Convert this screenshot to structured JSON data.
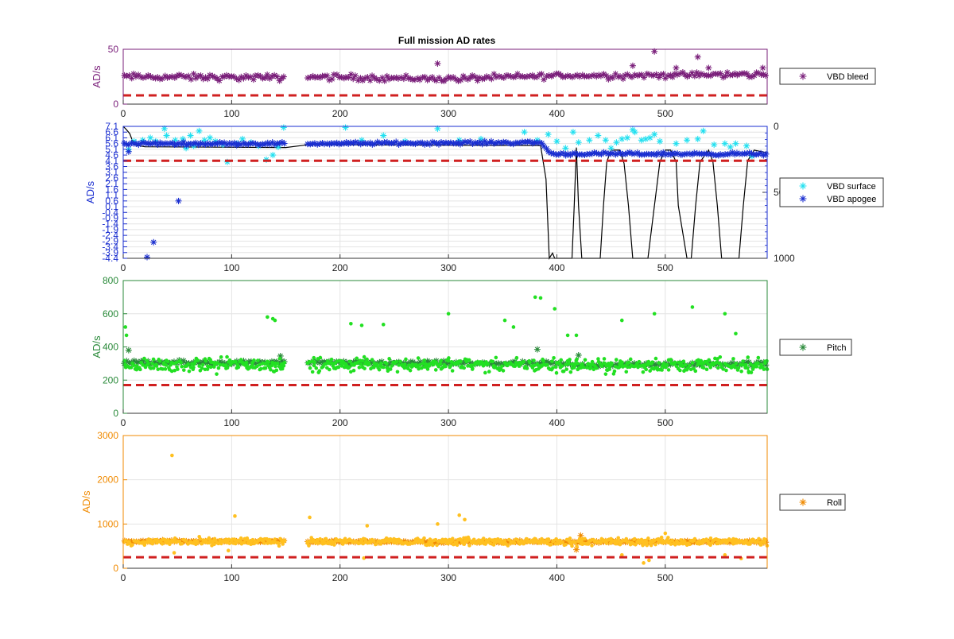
{
  "title": "Full mission AD rates",
  "colors": {
    "purple": "#7a1f7a",
    "cyan": "#22e0f0",
    "blue": "#1a2ed0",
    "darkgreen": "#2a8a3a",
    "lightgreen": "#22e022",
    "orange": "#f08a00",
    "yellow": "#ffc020",
    "threshold": "#d02020",
    "depth": "#000000"
  },
  "chart_data": [
    {
      "type": "scatter",
      "ylabel": "AD/s",
      "axis_color": "#7a1f7a",
      "xlim": [
        0,
        594
      ],
      "ylim": [
        0,
        50
      ],
      "xticks": [
        0,
        100,
        200,
        300,
        400,
        500
      ],
      "yticks": [
        0,
        50
      ],
      "grid": true,
      "threshold": 8,
      "legend": [
        "VBD bleed"
      ],
      "gaps": [
        [
          150,
          170
        ]
      ],
      "series": [
        {
          "name": "VBD bleed",
          "marker": "star",
          "color": "#7a1f7a",
          "trend": {
            "x": [
              0,
              150,
              170,
              300,
              400,
              450,
              594
            ],
            "y": [
              25,
              24,
              25,
              23,
              26,
              26,
              27
            ]
          },
          "jitter": 4,
          "outliers": [
            {
              "x": 490,
              "y": 48
            },
            {
              "x": 530,
              "y": 43
            },
            {
              "x": 510,
              "y": 33
            },
            {
              "x": 290,
              "y": 37
            },
            {
              "x": 470,
              "y": 35
            },
            {
              "x": 540,
              "y": 33
            },
            {
              "x": 590,
              "y": 33
            }
          ]
        }
      ]
    },
    {
      "type": "scatter",
      "ylabel": "AD/s",
      "axis_color": "#1a2ed0",
      "xlim": [
        0,
        594
      ],
      "ylim": [
        -4.4,
        7.1
      ],
      "yticks": [
        7.1,
        6.6,
        6.1,
        5.6,
        5.1,
        4.6,
        4.1,
        3.6,
        3.1,
        2.6,
        2.1,
        1.6,
        1.1,
        0.6,
        0.1,
        -0.4,
        -0.9,
        -1.4,
        -1.9,
        -2.4,
        -2.9,
        -3.4,
        -3.9,
        -4.4
      ],
      "ytick_labels": [
        "7.1",
        "6.6",
        "6.1",
        "5.6",
        "5.1",
        "4.6",
        "4.1",
        "3.6",
        "3.1",
        "2.6",
        "2.1",
        "1.6",
        "1.1",
        "0.6",
        "0.1",
        "-0.4",
        "-0.9",
        "-1.4",
        "-1.9",
        "-2.4",
        "-2.9",
        "-3.4",
        "-3.9",
        "-4.4"
      ],
      "y2lim": [
        0,
        1000
      ],
      "y2ticks": [
        0,
        500,
        1000
      ],
      "y2tick_labels": [
        "0",
        "500",
        "1000"
      ],
      "xticks": [
        0,
        100,
        200,
        300,
        400,
        500
      ],
      "grid": true,
      "threshold": 4.1,
      "legend": [
        "VBD surface",
        "VBD apogee"
      ],
      "gaps": [
        [
          150,
          170
        ]
      ],
      "series": [
        {
          "name": "VBD surface",
          "marker": "star",
          "color": "#22e0f0",
          "points": [
            [
              5,
              5.1
            ],
            [
              10,
              5.8
            ],
            [
              18,
              5.9
            ],
            [
              25,
              6.1
            ],
            [
              30,
              5.8
            ],
            [
              38,
              6.9
            ],
            [
              40,
              6.3
            ],
            [
              48,
              5.9
            ],
            [
              55,
              6.0
            ],
            [
              58,
              5.2
            ],
            [
              62,
              6.3
            ],
            [
              65,
              5.4
            ],
            [
              70,
              6.7
            ],
            [
              75,
              5.9
            ],
            [
              80,
              6.1
            ],
            [
              85,
              5.8
            ],
            [
              92,
              5.5
            ],
            [
              96,
              4.0
            ],
            [
              105,
              5.6
            ],
            [
              110,
              6.0
            ],
            [
              118,
              5.7
            ],
            [
              125,
              5.4
            ],
            [
              132,
              4.2
            ],
            [
              138,
              4.6
            ],
            [
              143,
              5.3
            ],
            [
              148,
              7.0
            ],
            [
              205,
              7.0
            ],
            [
              220,
              5.9
            ],
            [
              240,
              6.3
            ],
            [
              260,
              5.8
            ],
            [
              290,
              6.9
            ],
            [
              310,
              5.9
            ],
            [
              330,
              6.0
            ],
            [
              370,
              6.6
            ],
            [
              382,
              5.9
            ],
            [
              392,
              6.4
            ],
            [
              400,
              5.8
            ],
            [
              408,
              5.2
            ],
            [
              415,
              6.6
            ],
            [
              420,
              5.7
            ],
            [
              430,
              5.9
            ],
            [
              438,
              6.3
            ],
            [
              445,
              5.9
            ],
            [
              450,
              5.2
            ],
            [
              455,
              5.7
            ],
            [
              460,
              6.0
            ],
            [
              465,
              6.1
            ],
            [
              470,
              6.8
            ],
            [
              472,
              6.6
            ],
            [
              478,
              5.9
            ],
            [
              482,
              6.0
            ],
            [
              486,
              6.1
            ],
            [
              490,
              6.4
            ],
            [
              495,
              5.8
            ],
            [
              510,
              5.6
            ],
            [
              520,
              5.9
            ],
            [
              530,
              6.0
            ],
            [
              535,
              6.7
            ],
            [
              545,
              5.5
            ],
            [
              555,
              5.6
            ],
            [
              560,
              5.3
            ],
            [
              565,
              5.6
            ],
            [
              575,
              5.4
            ],
            [
              580,
              4.5
            ]
          ]
        },
        {
          "name": "VBD apogee",
          "marker": "star",
          "color": "#1a2ed0",
          "trend": {
            "x": [
              0,
              150,
              170,
              385,
              395,
              594
            ],
            "y": [
              5.6,
              5.6,
              5.6,
              5.7,
              4.7,
              4.7
            ]
          },
          "jitter": 0.18,
          "outliers": [
            {
              "x": 22,
              "y": -4.3
            },
            {
              "x": 28,
              "y": -3.0
            },
            {
              "x": 51,
              "y": 0.6
            },
            {
              "x": 5,
              "y": 4.9
            }
          ]
        }
      ],
      "depth": {
        "name": "depth",
        "x": [
          0,
          3,
          6,
          10,
          20,
          150,
          170,
          385,
          390,
          393,
          396,
          398,
          400,
          414,
          416,
          418,
          420,
          423,
          440,
          443,
          446,
          450,
          458,
          462,
          466,
          470,
          478,
          484,
          490,
          495,
          500,
          505,
          510,
          512,
          520,
          524,
          528,
          532,
          540,
          544,
          548,
          552,
          568,
          572,
          576,
          582,
          594
        ],
        "y": [
          0,
          25,
          55,
          140,
          155,
          160,
          140,
          145,
          400,
          1000,
          960,
          1000,
          1000,
          1000,
          600,
          160,
          600,
          1000,
          1000,
          600,
          270,
          180,
          180,
          280,
          600,
          1000,
          1000,
          1000,
          600,
          270,
          180,
          180,
          270,
          600,
          1000,
          1000,
          600,
          270,
          180,
          270,
          600,
          1000,
          1000,
          600,
          260,
          180,
          200
        ]
      }
    },
    {
      "type": "scatter",
      "ylabel": "AD/s",
      "axis_color": "#2a8a3a",
      "xlim": [
        0,
        594
      ],
      "ylim": [
        0,
        800
      ],
      "xticks": [
        0,
        100,
        200,
        300,
        400,
        500
      ],
      "yticks": [
        0,
        200,
        400,
        600,
        800
      ],
      "grid": true,
      "threshold": 170,
      "legend": [
        "Pitch"
      ],
      "gaps": [
        [
          150,
          170
        ]
      ],
      "series": [
        {
          "name": "Pitch",
          "marker": "star",
          "color": "#2a8a3a",
          "trend": {
            "x": [
              0,
              150,
              170,
              395,
              420,
              594
            ],
            "y": [
              305,
              305,
              305,
              300,
              290,
              300
            ]
          },
          "jitter": 18,
          "outliers": [
            {
              "x": 5,
              "y": 380
            },
            {
              "x": 382,
              "y": 385
            },
            {
              "x": 420,
              "y": 350
            },
            {
              "x": 145,
              "y": 345
            }
          ]
        },
        {
          "name": "",
          "marker": "dot",
          "color": "#22e022",
          "trend": {
            "x": [
              0,
              150,
              170,
              594
            ],
            "y": [
              290,
              290,
              290,
              290
            ]
          },
          "jitter": 60,
          "outliers": [
            {
              "x": 2,
              "y": 520
            },
            {
              "x": 3,
              "y": 470
            },
            {
              "x": 133,
              "y": 580
            },
            {
              "x": 138,
              "y": 570
            },
            {
              "x": 140,
              "y": 560
            },
            {
              "x": 210,
              "y": 540
            },
            {
              "x": 220,
              "y": 530
            },
            {
              "x": 240,
              "y": 535
            },
            {
              "x": 300,
              "y": 600
            },
            {
              "x": 380,
              "y": 700
            },
            {
              "x": 385,
              "y": 695
            },
            {
              "x": 360,
              "y": 520
            },
            {
              "x": 352,
              "y": 560
            },
            {
              "x": 398,
              "y": 630
            },
            {
              "x": 418,
              "y": 470
            },
            {
              "x": 460,
              "y": 560
            },
            {
              "x": 490,
              "y": 600
            },
            {
              "x": 525,
              "y": 640
            },
            {
              "x": 555,
              "y": 600
            },
            {
              "x": 565,
              "y": 480
            },
            {
              "x": 410,
              "y": 470
            }
          ]
        }
      ]
    },
    {
      "type": "scatter",
      "ylabel": "AD/s",
      "axis_color": "#f08a00",
      "xlim": [
        0,
        594
      ],
      "ylim": [
        0,
        3000
      ],
      "xticks": [
        0,
        100,
        200,
        300,
        400,
        500
      ],
      "yticks": [
        0,
        1000,
        2000,
        3000
      ],
      "grid": true,
      "threshold": 250,
      "legend": [
        "Roll"
      ],
      "gaps": [
        [
          150,
          170
        ]
      ],
      "series": [
        {
          "name": "Roll",
          "marker": "star",
          "color": "#f08a00",
          "trend": {
            "x": [
              0,
              150,
              170,
              594
            ],
            "y": [
              610,
              610,
              600,
              600
            ]
          },
          "jitter": 30,
          "outliers": [
            {
              "x": 418,
              "y": 420
            },
            {
              "x": 422,
              "y": 740
            }
          ]
        },
        {
          "name": "",
          "marker": "dot",
          "color": "#ffc020",
          "trend": {
            "x": [
              0,
              150,
              170,
              594
            ],
            "y": [
              600,
              600,
              600,
              600
            ]
          },
          "jitter": 120,
          "outliers": [
            {
              "x": 45,
              "y": 2550
            },
            {
              "x": 103,
              "y": 1180
            },
            {
              "x": 172,
              "y": 1150
            },
            {
              "x": 225,
              "y": 960
            },
            {
              "x": 290,
              "y": 1000
            },
            {
              "x": 310,
              "y": 1200
            },
            {
              "x": 315,
              "y": 1100
            },
            {
              "x": 480,
              "y": 120
            },
            {
              "x": 485,
              "y": 180
            },
            {
              "x": 47,
              "y": 350
            },
            {
              "x": 97,
              "y": 400
            },
            {
              "x": 222,
              "y": 230
            },
            {
              "x": 570,
              "y": 220
            },
            {
              "x": 555,
              "y": 300
            },
            {
              "x": 460,
              "y": 300
            },
            {
              "x": 500,
              "y": 790
            }
          ]
        }
      ]
    }
  ]
}
